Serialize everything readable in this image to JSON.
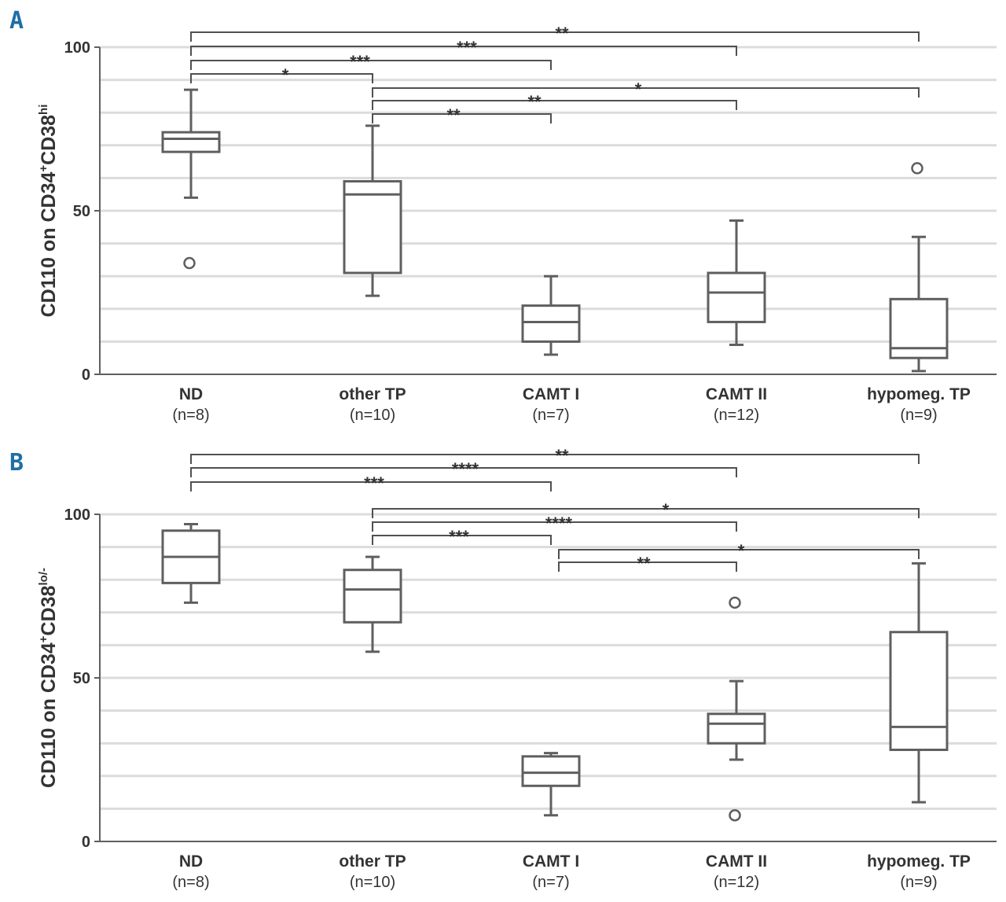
{
  "chart_data": [
    {
      "panel": "A",
      "type": "box",
      "ylabel": {
        "prefix": "CD110 on CD34",
        "sup1": "+",
        "mid": "CD38",
        "sup2": "hi"
      },
      "ylim": [
        0,
        100
      ],
      "yticks": [
        0,
        50,
        100
      ],
      "gridlines": [
        10,
        20,
        30,
        40,
        50,
        60,
        70,
        80,
        90,
        100
      ],
      "categories": [
        {
          "name": "ND",
          "n": "(n=8)"
        },
        {
          "name": "other TP",
          "n": "(n=10)"
        },
        {
          "name": "CAMT I",
          "n": "(n=7)"
        },
        {
          "name": "CAMT II",
          "n": "(n=12)"
        },
        {
          "name": "hypomeg. TP",
          "n": "(n=9)"
        }
      ],
      "boxes": [
        {
          "min": 54,
          "q1": 68,
          "median": 72,
          "q3": 74,
          "max": 87,
          "outliers": [
            34
          ]
        },
        {
          "min": 24,
          "q1": 31,
          "median": 55,
          "q3": 59,
          "max": 76,
          "outliers": []
        },
        {
          "min": 6,
          "q1": 10,
          "median": 16,
          "q3": 21,
          "max": 30,
          "outliers": []
        },
        {
          "min": 9,
          "q1": 16,
          "median": 25,
          "q3": 31,
          "max": 47,
          "outliers": []
        },
        {
          "min": 1,
          "q1": 5,
          "median": 8,
          "q3": 23,
          "max": 42,
          "outliers": [
            63
          ]
        }
      ],
      "comparisons": [
        {
          "from": 0,
          "to": 4,
          "label": "**"
        },
        {
          "from": 0,
          "to": 3,
          "label": "***"
        },
        {
          "from": 0,
          "to": 2,
          "label": "***"
        },
        {
          "from": 0,
          "to": 1,
          "label": "*"
        },
        {
          "from": 1,
          "to": 4,
          "label": "*"
        },
        {
          "from": 1,
          "to": 3,
          "label": "**"
        },
        {
          "from": 1,
          "to": 2,
          "label": "**"
        }
      ]
    },
    {
      "panel": "B",
      "type": "box",
      "ylabel": {
        "prefix": "CD110 on CD34",
        "sup1": "+",
        "mid": "CD38",
        "sup2": "lo/-"
      },
      "ylim": [
        0,
        100
      ],
      "yticks": [
        0,
        50,
        100
      ],
      "gridlines": [
        10,
        20,
        30,
        40,
        50,
        60,
        70,
        80,
        90,
        100
      ],
      "categories": [
        {
          "name": "ND",
          "n": "(n=8)"
        },
        {
          "name": "other TP",
          "n": "(n=10)"
        },
        {
          "name": "CAMT I",
          "n": "(n=7)"
        },
        {
          "name": "CAMT II",
          "n": "(n=12)"
        },
        {
          "name": "hypomeg. TP",
          "n": "(n=9)"
        }
      ],
      "boxes": [
        {
          "min": 73,
          "q1": 79,
          "median": 87,
          "q3": 95,
          "max": 97,
          "outliers": []
        },
        {
          "min": 58,
          "q1": 67,
          "median": 77,
          "q3": 83,
          "max": 87,
          "outliers": []
        },
        {
          "min": 8,
          "q1": 17,
          "median": 21,
          "q3": 26,
          "max": 27,
          "outliers": []
        },
        {
          "min": 25,
          "q1": 30,
          "median": 36,
          "q3": 39,
          "max": 49,
          "outliers": [
            73,
            8
          ]
        },
        {
          "min": 12,
          "q1": 28,
          "median": 35,
          "q3": 64,
          "max": 85,
          "outliers": []
        }
      ],
      "comparisons": [
        {
          "from": 0,
          "to": 4,
          "label": "**"
        },
        {
          "from": 0,
          "to": 3,
          "label": "****"
        },
        {
          "from": 0,
          "to": 2,
          "label": "***"
        },
        {
          "from": 1,
          "to": 4,
          "label": "*"
        },
        {
          "from": 1,
          "to": 3,
          "label": "****"
        },
        {
          "from": 1,
          "to": 2,
          "label": "***"
        },
        {
          "from": 2,
          "to": 4,
          "label": "*"
        },
        {
          "from": 2,
          "to": 3,
          "label": "**"
        }
      ]
    }
  ]
}
